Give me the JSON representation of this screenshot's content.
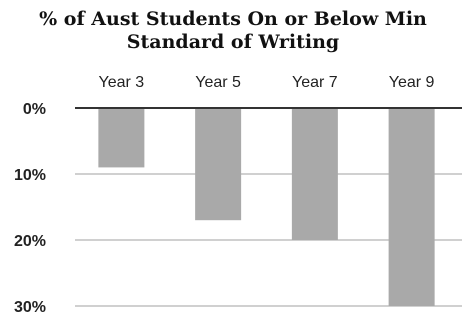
{
  "chart_data": {
    "type": "bar",
    "title_line1": "% of Aust Students On or Below Min",
    "title_line2": "Standard of Writing",
    "categories": [
      "Year 3",
      "Year 5",
      "Year 7",
      "Year 9"
    ],
    "values": [
      9,
      17,
      20,
      30
    ],
    "ylim": [
      0,
      30
    ],
    "yticks": [
      "0%",
      "10%",
      "20%",
      "30%"
    ],
    "grid": true,
    "bar_color": "#a9a9a9",
    "grid_color": "#d0d0d0",
    "axis_color": "#333333"
  }
}
